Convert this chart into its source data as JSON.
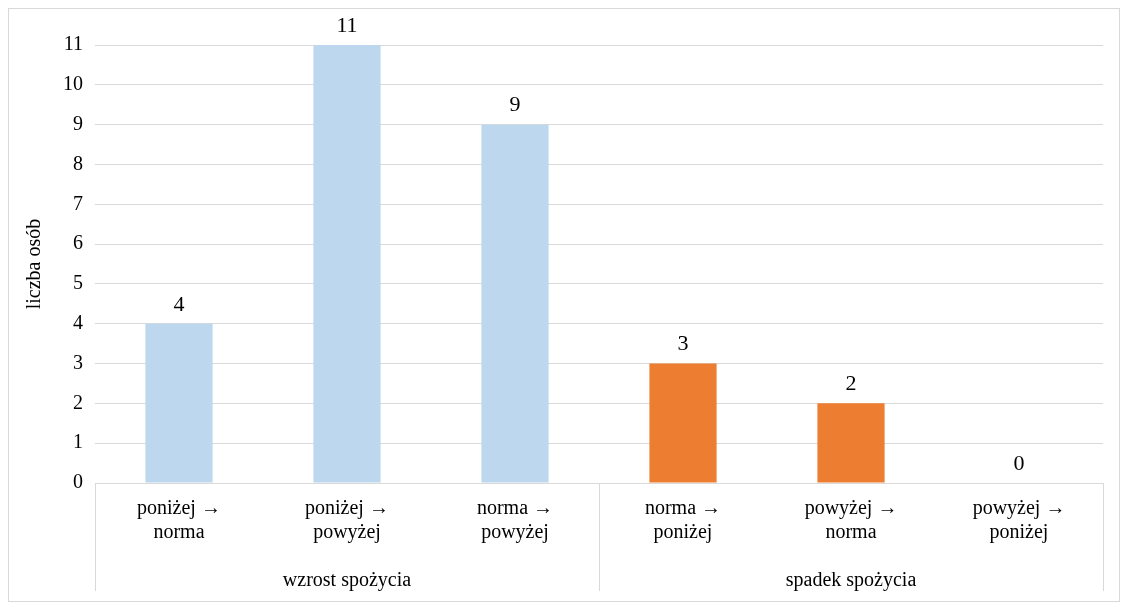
{
  "chart_data": {
    "type": "bar",
    "ylabel": "liczba osób",
    "categories": [
      "poniżej → norma",
      "poniżej → powyżej",
      "norma → powyżej",
      "norma → poniżej",
      "powyżej → norma",
      "powyżej → poniżej"
    ],
    "values": [
      4,
      11,
      9,
      3,
      2,
      0
    ],
    "colors": [
      "#bdd7ee",
      "#bdd7ee",
      "#bdd7ee",
      "#ed7d31",
      "#ed7d31",
      "#ed7d31"
    ],
    "ylim": [
      0,
      11
    ],
    "yticks": [
      0,
      1,
      2,
      3,
      4,
      5,
      6,
      7,
      8,
      9,
      10,
      11
    ],
    "grid": "y",
    "legend": false,
    "data_labels": true,
    "annotations": [
      "wzrost spożycia",
      "spadek spożycia"
    ]
  }
}
